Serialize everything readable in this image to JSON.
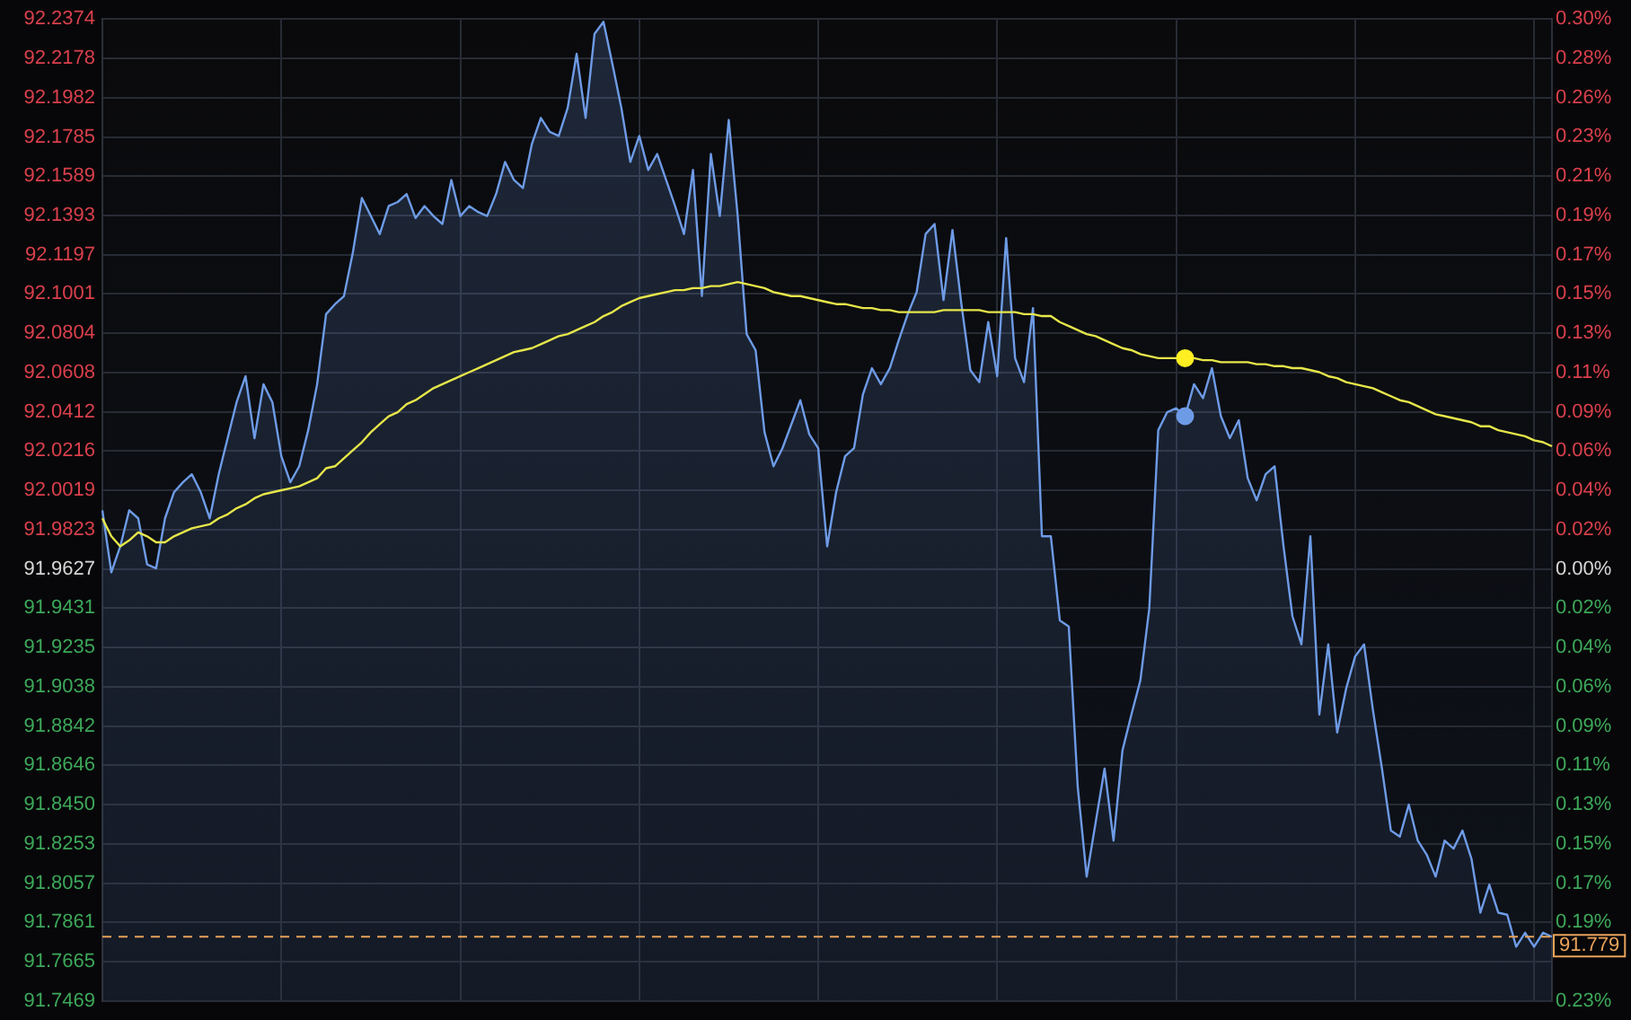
{
  "chart_data": {
    "type": "area",
    "categories": [
      null,
      null,
      null,
      null,
      null,
      null,
      null,
      null,
      null,
      null,
      null,
      null,
      null,
      null,
      null,
      null,
      null,
      null,
      null,
      null,
      null,
      null,
      null,
      null,
      null,
      null,
      null,
      null,
      null,
      null,
      null,
      null,
      null,
      null,
      null,
      null,
      null,
      null,
      null,
      null,
      null,
      null,
      null,
      null,
      null,
      null,
      null,
      null,
      null,
      null,
      null,
      null,
      null,
      null,
      null,
      null,
      null,
      null,
      null,
      null,
      null,
      null,
      null,
      null,
      null,
      null,
      null,
      null,
      null,
      null,
      null,
      null,
      null,
      null,
      null,
      null,
      null,
      null,
      null,
      null,
      null,
      null,
      null,
      null,
      null,
      null,
      null,
      null,
      null,
      null,
      null,
      null,
      null,
      null,
      null,
      null,
      null,
      null,
      null,
      null,
      null,
      null,
      null,
      null,
      null,
      null,
      null,
      null,
      null,
      null,
      null,
      null,
      null,
      null,
      null,
      null,
      null,
      null,
      null,
      null,
      null,
      null,
      null,
      null,
      null,
      null,
      null,
      null,
      null,
      null,
      null,
      null,
      null,
      null,
      null,
      null,
      null,
      null,
      null,
      null,
      null,
      null,
      null,
      null,
      null,
      null,
      null,
      null,
      null,
      null,
      null,
      null,
      null,
      null,
      null,
      null,
      null,
      null,
      null,
      null,
      null,
      null,
      null
    ],
    "series": [
      {
        "color": "#6e9be6",
        "values": [
          91.992,
          91.961,
          91.974,
          91.992,
          91.988,
          91.965,
          91.963,
          91.988,
          92.001,
          92.006,
          92.01,
          92.001,
          91.988,
          92.01,
          92.028,
          92.046,
          92.059,
          92.028,
          92.055,
          92.046,
          92.019,
          92.006,
          92.014,
          92.032,
          92.055,
          92.09,
          92.095,
          92.099,
          92.121,
          92.148,
          92.139,
          92.13,
          92.144,
          92.146,
          92.15,
          92.138,
          92.144,
          92.139,
          92.135,
          92.157,
          92.139,
          92.144,
          92.141,
          92.139,
          92.15,
          92.166,
          92.157,
          92.153,
          92.175,
          92.188,
          92.181,
          92.179,
          92.193,
          92.22,
          92.188,
          92.23,
          92.236,
          92.215,
          92.193,
          92.166,
          92.179,
          92.162,
          92.17,
          92.157,
          92.144,
          92.13,
          92.162,
          92.099,
          92.17,
          92.139,
          92.187,
          92.139,
          92.08,
          92.072,
          92.031,
          92.014,
          92.023,
          92.035,
          92.047,
          92.03,
          92.023,
          91.974,
          92.001,
          92.019,
          92.023,
          92.05,
          92.063,
          92.055,
          92.063,
          92.077,
          92.09,
          92.101,
          92.13,
          92.135,
          92.097,
          92.132,
          92.095,
          92.062,
          92.056,
          92.086,
          92.059,
          92.128,
          92.068,
          92.056,
          92.093,
          91.979,
          91.979,
          91.937,
          91.934,
          91.854,
          91.809,
          91.836,
          91.863,
          91.827,
          91.872,
          91.89,
          91.907,
          91.943,
          92.032,
          92.041,
          92.043,
          92.039,
          92.055,
          92.048,
          92.063,
          92.039,
          92.028,
          92.037,
          92.008,
          91.997,
          92.01,
          92.014,
          91.974,
          91.939,
          91.925,
          91.979,
          91.89,
          91.925,
          91.881,
          91.903,
          91.919,
          91.925,
          91.892,
          91.863,
          91.832,
          91.829,
          91.845,
          91.827,
          91.82,
          91.809,
          91.827,
          91.823,
          91.832,
          91.818,
          91.791,
          91.805,
          91.791,
          91.79,
          91.774,
          91.781,
          91.774,
          91.781,
          91.779
        ]
      },
      {
        "type": "line",
        "color": "#e6e64a",
        "values": [
          91.988,
          91.979,
          91.974,
          91.977,
          91.981,
          91.979,
          91.976,
          91.976,
          91.979,
          91.981,
          91.983,
          91.984,
          91.985,
          91.988,
          91.99,
          91.993,
          91.995,
          91.998,
          92.0,
          92.001,
          92.002,
          92.003,
          92.004,
          92.006,
          92.008,
          92.013,
          92.014,
          92.018,
          92.022,
          92.026,
          92.031,
          92.035,
          92.039,
          92.041,
          92.045,
          92.047,
          92.05,
          92.053,
          92.055,
          92.057,
          92.059,
          92.061,
          92.063,
          92.065,
          92.067,
          92.069,
          92.071,
          92.072,
          92.073,
          92.075,
          92.077,
          92.079,
          92.08,
          92.082,
          92.084,
          92.086,
          92.089,
          92.091,
          92.094,
          92.096,
          92.098,
          92.099,
          92.1,
          92.101,
          92.102,
          92.102,
          92.103,
          92.103,
          92.104,
          92.104,
          92.105,
          92.106,
          92.105,
          92.104,
          92.103,
          92.101,
          92.1,
          92.099,
          92.099,
          92.098,
          92.097,
          92.096,
          92.095,
          92.095,
          92.094,
          92.093,
          92.093,
          92.092,
          92.092,
          92.091,
          92.091,
          92.091,
          92.091,
          92.091,
          92.092,
          92.092,
          92.092,
          92.092,
          92.092,
          92.091,
          92.091,
          92.091,
          92.091,
          92.09,
          92.09,
          92.089,
          92.089,
          92.086,
          92.084,
          92.082,
          92.08,
          92.079,
          92.077,
          92.075,
          92.073,
          92.072,
          92.07,
          92.069,
          92.068,
          92.068,
          92.068,
          92.068,
          92.068,
          92.067,
          92.067,
          92.066,
          92.066,
          92.066,
          92.066,
          92.065,
          92.065,
          92.064,
          92.064,
          92.063,
          92.063,
          92.062,
          92.061,
          92.059,
          92.058,
          92.056,
          92.055,
          92.054,
          92.053,
          92.051,
          92.049,
          92.047,
          92.046,
          92.044,
          92.042,
          92.04,
          92.039,
          92.038,
          92.037,
          92.036,
          92.034,
          92.034,
          92.032,
          92.031,
          92.03,
          92.029,
          92.027,
          92.026,
          92.024
        ]
      },
      {
        "type": "scatter",
        "color": "#ffee22",
        "marker": "circle",
        "values": [
          null,
          null,
          null,
          null,
          null,
          null,
          null,
          null,
          null,
          null,
          null,
          null,
          null,
          null,
          null,
          null,
          null,
          null,
          null,
          null,
          null,
          null,
          null,
          null,
          null,
          null,
          null,
          null,
          null,
          null,
          null,
          null,
          null,
          null,
          null,
          null,
          null,
          null,
          null,
          null,
          null,
          null,
          null,
          null,
          null,
          null,
          null,
          null,
          null,
          null,
          null,
          null,
          null,
          null,
          null,
          null,
          null,
          null,
          null,
          null,
          null,
          null,
          null,
          null,
          null,
          null,
          null,
          null,
          null,
          null,
          null,
          null,
          null,
          null,
          null,
          null,
          null,
          null,
          null,
          null,
          null,
          null,
          null,
          null,
          null,
          null,
          null,
          null,
          null,
          null,
          null,
          null,
          null,
          null,
          null,
          null,
          null,
          null,
          null,
          null,
          null,
          null,
          null,
          null,
          null,
          null,
          null,
          null,
          null,
          null,
          null,
          null,
          null,
          null,
          null,
          null,
          null,
          null,
          null,
          null,
          null,
          92.068,
          null,
          null,
          null,
          null,
          null,
          null,
          null,
          null,
          null,
          null,
          null,
          null,
          null,
          null,
          null,
          null,
          null,
          null,
          null,
          null,
          null,
          null,
          null,
          null,
          null,
          null,
          null,
          null,
          null,
          null,
          null,
          null,
          null,
          null,
          null,
          null,
          null,
          null,
          null,
          null,
          null
        ]
      },
      {
        "type": "scatter",
        "color": "#6e9be6",
        "marker": "circle",
        "values": [
          null,
          null,
          null,
          null,
          null,
          null,
          null,
          null,
          null,
          null,
          null,
          null,
          null,
          null,
          null,
          null,
          null,
          null,
          null,
          null,
          null,
          null,
          null,
          null,
          null,
          null,
          null,
          null,
          null,
          null,
          null,
          null,
          null,
          null,
          null,
          null,
          null,
          null,
          null,
          null,
          null,
          null,
          null,
          null,
          null,
          null,
          null,
          null,
          null,
          null,
          null,
          null,
          null,
          null,
          null,
          null,
          null,
          null,
          null,
          null,
          null,
          null,
          null,
          null,
          null,
          null,
          null,
          null,
          null,
          null,
          null,
          null,
          null,
          null,
          null,
          null,
          null,
          null,
          null,
          null,
          null,
          null,
          null,
          null,
          null,
          null,
          null,
          null,
          null,
          null,
          null,
          null,
          null,
          null,
          null,
          null,
          null,
          null,
          null,
          null,
          null,
          null,
          null,
          null,
          null,
          null,
          null,
          null,
          null,
          null,
          null,
          null,
          null,
          null,
          null,
          null,
          null,
          null,
          null,
          null,
          null,
          92.039,
          null,
          null,
          null,
          null,
          null,
          null,
          null,
          null,
          null,
          null,
          null,
          null,
          null,
          null,
          null,
          null,
          null,
          null,
          null,
          null,
          null,
          null,
          null,
          null,
          null,
          null,
          null,
          null,
          null,
          null,
          null,
          null,
          null,
          null,
          null,
          null,
          null,
          null,
          null,
          null,
          null
        ]
      }
    ],
    "ylim": [
      91.7469,
      92.2374
    ],
    "yticks": [
      92.2374,
      92.2178,
      92.1982,
      92.1785,
      92.1589,
      92.1393,
      92.1197,
      92.1001,
      92.0804,
      92.0608,
      92.0412,
      92.0216,
      92.0019,
      91.9823,
      91.9627,
      91.9431,
      91.9235,
      91.9038,
      91.8842,
      91.8646,
      {
        "value": 91.845,
        "label": "91.8450"
      },
      91.8253,
      91.8057,
      91.7861,
      91.7665,
      91.7469
    ],
    "y2lim": [
      -0.2347,
      0.2987
    ],
    "y2ticks": [
      {
        "value": 0.2987,
        "label": "0.30%"
      },
      {
        "value": 0.2774,
        "label": "0.28%"
      },
      {
        "value": 0.2561,
        "label": "0.26%"
      },
      {
        "value": 0.2347,
        "label": "0.23%"
      },
      {
        "value": 0.2133,
        "label": "0.21%"
      },
      {
        "value": 0.192,
        "label": "0.19%"
      },
      {
        "value": 0.1707,
        "label": "0.17%"
      },
      {
        "value": 0.1494,
        "label": "0.15%"
      },
      {
        "value": 0.128,
        "label": "0.13%"
      },
      {
        "value": 0.1067,
        "label": "0.11%"
      },
      {
        "value": 0.0854,
        "label": "0.09%"
      },
      {
        "value": 0.064,
        "label": "0.06%"
      },
      {
        "value": 0.0426,
        "label": "0.04%"
      },
      {
        "value": 0.0213,
        "label": "0.02%"
      },
      {
        "value": 0,
        "label": "0.00%"
      },
      {
        "value": -0.0213,
        "label": "0.02%"
      },
      {
        "value": -0.0426,
        "label": "0.04%"
      },
      {
        "value": -0.064,
        "label": "0.06%"
      },
      {
        "value": -0.0854,
        "label": "0.09%"
      },
      {
        "value": -0.1067,
        "label": "0.11%"
      },
      {
        "value": -0.128,
        "label": "0.13%"
      },
      {
        "value": -0.1494,
        "label": "0.15%"
      },
      {
        "value": -0.1707,
        "label": "0.17%"
      },
      {
        "value": -0.192,
        "label": "0.19%"
      },
      {
        "value": -0.2133,
        "label": null
      },
      {
        "value": -0.2347,
        "label": "0.23%"
      }
    ],
    "ref_lines": [
      {
        "axis": "y",
        "value": 91.779,
        "label": "91.779",
        "color": "#e8a25a",
        "line_style": "dashed"
      }
    ],
    "grid": true,
    "legend": false,
    "tick_labels": "y"
  }
}
